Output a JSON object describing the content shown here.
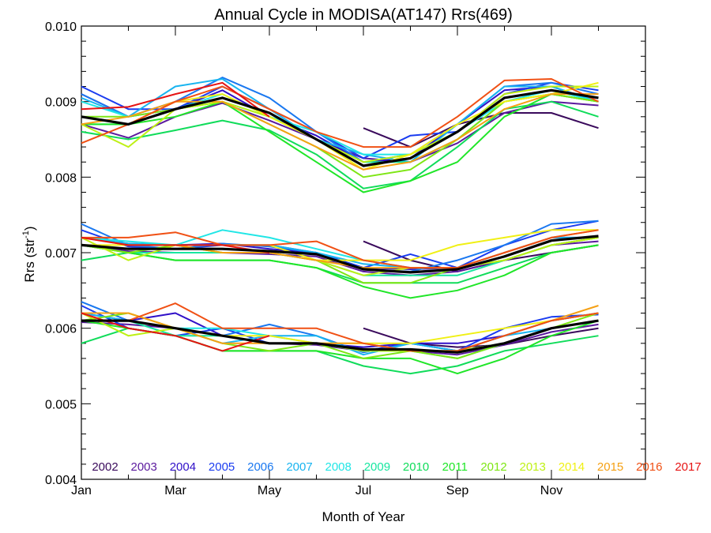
{
  "chart_data": {
    "type": "line",
    "title": "Annual Cycle in MODISA(AT147) Rrs(469)",
    "xlabel": "Month of Year",
    "ylabel_main": "Rrs (str",
    "ylabel_sup": "-1",
    "ylabel_end": ")",
    "xlim": [
      1,
      13
    ],
    "ylim": [
      0.004,
      0.01
    ],
    "x_ticks": [
      {
        "value": 1,
        "label": "Jan"
      },
      {
        "value": 3,
        "label": "Mar"
      },
      {
        "value": 5,
        "label": "May"
      },
      {
        "value": 7,
        "label": "Jul"
      },
      {
        "value": 9,
        "label": "Sep"
      },
      {
        "value": 11,
        "label": "Nov"
      }
    ],
    "y_ticks": [
      {
        "value": 0.004,
        "label": "0.004"
      },
      {
        "value": 0.005,
        "label": "0.005"
      },
      {
        "value": 0.006,
        "label": "0.006"
      },
      {
        "value": 0.007,
        "label": "0.007"
      },
      {
        "value": 0.008,
        "label": "0.008"
      },
      {
        "value": 0.009,
        "label": "0.009"
      },
      {
        "value": 0.01,
        "label": "0.010"
      }
    ],
    "legend_position": "bottom",
    "mean_color": "#000000",
    "months": [
      1,
      2,
      3,
      4,
      5,
      6,
      7,
      8,
      9,
      10,
      11,
      12
    ],
    "mean": {
      "upper": [
        0.0088,
        0.0087,
        0.0089,
        0.00905,
        0.00885,
        0.0085,
        0.00815,
        0.00825,
        0.0086,
        0.00905,
        0.00915,
        0.00905
      ],
      "middle": [
        0.0071,
        0.00705,
        0.00705,
        0.00705,
        0.00702,
        0.00698,
        0.00678,
        0.00674,
        0.00678,
        0.00695,
        0.00716,
        0.00722
      ],
      "lower": [
        0.0061,
        0.0061,
        0.006,
        0.0059,
        0.0058,
        0.0058,
        0.00572,
        0.00572,
        0.00568,
        0.0058,
        0.006,
        0.0061
      ]
    },
    "series": [
      {
        "name": "2002",
        "color": "#3a0a5c",
        "upper": [
          null,
          null,
          null,
          null,
          null,
          null,
          0.00865,
          0.0084,
          0.0087,
          0.00885,
          0.00885,
          0.00865
        ],
        "middle": [
          null,
          null,
          null,
          null,
          null,
          null,
          0.00715,
          0.0069,
          0.00675,
          0.0069,
          0.007,
          0.0071
        ],
        "lower": [
          null,
          null,
          null,
          null,
          null,
          null,
          0.006,
          0.0058,
          0.00575,
          0.00578,
          0.0059,
          0.006
        ]
      },
      {
        "name": "2003",
        "color": "#5b1a9e",
        "upper": [
          0.0087,
          0.00852,
          0.0088,
          0.00898,
          0.00875,
          0.0085,
          0.00825,
          0.0082,
          0.00845,
          0.00885,
          0.009,
          0.00895
        ],
        "middle": [
          0.0071,
          0.00702,
          0.007,
          0.007,
          0.00698,
          0.00695,
          0.00675,
          0.0067,
          0.00675,
          0.0069,
          0.0071,
          0.00715
        ],
        "lower": [
          0.00608,
          0.00605,
          0.006,
          0.0059,
          0.0058,
          0.00578,
          0.0057,
          0.0057,
          0.00565,
          0.00578,
          0.00595,
          0.00605
        ]
      },
      {
        "name": "2004",
        "color": "#3010c8",
        "upper": [
          0.0091,
          0.0088,
          0.0089,
          0.00915,
          0.0088,
          0.00855,
          0.0082,
          0.00825,
          0.0087,
          0.00915,
          0.0092,
          0.009
        ],
        "middle": [
          0.0072,
          0.00712,
          0.0071,
          0.00712,
          0.00705,
          0.007,
          0.0068,
          0.00678,
          0.0068,
          0.007,
          0.0072,
          0.0072
        ],
        "lower": [
          0.0062,
          0.0061,
          0.0062,
          0.0059,
          0.0058,
          0.0058,
          0.00575,
          0.0058,
          0.0058,
          0.0059,
          0.0061,
          0.0062
        ]
      },
      {
        "name": "2005",
        "color": "#1a3cf0",
        "upper": [
          0.0092,
          0.0089,
          0.0089,
          0.0092,
          0.0089,
          0.0086,
          0.00825,
          0.00855,
          0.0086,
          0.0091,
          0.00925,
          0.00915
        ],
        "middle": [
          0.0073,
          0.00708,
          0.00705,
          0.0071,
          0.0071,
          0.007,
          0.0068,
          0.00698,
          0.0068,
          0.0071,
          0.0073,
          0.00742
        ],
        "lower": [
          0.0063,
          0.006,
          0.0059,
          0.006,
          0.0058,
          0.0058,
          0.0057,
          0.0058,
          0.0057,
          0.006,
          0.00615,
          0.00618
        ]
      },
      {
        "name": "2006",
        "color": "#1a78f0",
        "upper": [
          0.0091,
          0.0088,
          0.009,
          0.00932,
          0.00905,
          0.0086,
          0.0082,
          0.0083,
          0.0087,
          0.0092,
          0.00925,
          0.0091
        ],
        "middle": [
          0.00738,
          0.0071,
          0.00705,
          0.00712,
          0.00708,
          0.007,
          0.00678,
          0.00675,
          0.0069,
          0.0071,
          0.00738,
          0.00742
        ],
        "lower": [
          0.00635,
          0.0061,
          0.006,
          0.0059,
          0.00605,
          0.0059,
          0.00568,
          0.0058,
          0.0057,
          0.0059,
          0.0061,
          0.0062
        ]
      },
      {
        "name": "2007",
        "color": "#18b4f0",
        "upper": [
          0.00905,
          0.0088,
          0.0092,
          0.0093,
          0.0089,
          0.0085,
          0.0083,
          0.0082,
          0.0087,
          0.0092,
          0.0092,
          0.009
        ],
        "middle": [
          0.0072,
          0.00712,
          0.0071,
          0.0071,
          0.0071,
          0.007,
          0.00685,
          0.0068,
          0.0068,
          0.007,
          0.0072,
          0.0072
        ],
        "lower": [
          0.0062,
          0.0061,
          0.006,
          0.0058,
          0.0059,
          0.0059,
          0.00565,
          0.0058,
          0.0057,
          0.0059,
          0.006,
          0.0061
        ]
      },
      {
        "name": "2008",
        "color": "#20e6e6",
        "upper": [
          0.009,
          0.0088,
          0.0089,
          0.0091,
          0.0088,
          0.0086,
          0.0083,
          0.0083,
          0.0086,
          0.009,
          0.00915,
          0.009
        ],
        "middle": [
          0.0072,
          0.00715,
          0.0071,
          0.0073,
          0.0072,
          0.00705,
          0.0069,
          0.0068,
          0.0068,
          0.0069,
          0.0071,
          0.0072
        ],
        "lower": [
          0.0061,
          0.0061,
          0.006,
          0.006,
          0.0059,
          0.0058,
          0.0057,
          0.0057,
          0.0057,
          0.0058,
          0.006,
          0.0061
        ]
      },
      {
        "name": "2009",
        "color": "#18e6a0",
        "upper": [
          0.0087,
          0.0087,
          0.0089,
          0.009,
          0.0088,
          0.0085,
          0.0082,
          0.0082,
          0.0085,
          0.009,
          0.0091,
          0.009
        ],
        "middle": [
          0.0071,
          0.007,
          0.007,
          0.007,
          0.007,
          0.0069,
          0.0067,
          0.0067,
          0.0067,
          0.0069,
          0.0071,
          0.0072
        ],
        "lower": [
          0.0061,
          0.0061,
          0.0059,
          0.0059,
          0.0058,
          0.0058,
          0.0057,
          0.0057,
          0.0056,
          0.0058,
          0.006,
          0.0061
        ]
      },
      {
        "name": "2010",
        "color": "#10dc5a",
        "upper": [
          0.0086,
          0.0085,
          0.00862,
          0.00875,
          0.00862,
          0.0083,
          0.00785,
          0.00795,
          0.0084,
          0.0089,
          0.009,
          0.0088
        ],
        "middle": [
          0.0069,
          0.007,
          0.0069,
          0.0069,
          0.0069,
          0.0068,
          0.0066,
          0.0066,
          0.0066,
          0.0068,
          0.007,
          0.0071
        ],
        "lower": [
          0.0058,
          0.006,
          0.0059,
          0.0057,
          0.0057,
          0.0057,
          0.0055,
          0.0054,
          0.0055,
          0.0057,
          0.0058,
          0.0059
        ]
      },
      {
        "name": "2011",
        "color": "#20e628",
        "upper": [
          0.0087,
          0.0087,
          0.0088,
          0.009,
          0.0086,
          0.0082,
          0.0078,
          0.00795,
          0.0082,
          0.0088,
          0.0091,
          0.009
        ],
        "middle": [
          0.0071,
          0.007,
          0.0069,
          0.0069,
          0.0069,
          0.0068,
          0.00655,
          0.0064,
          0.0065,
          0.0067,
          0.007,
          0.0071
        ],
        "lower": [
          0.0061,
          0.006,
          0.0059,
          0.0057,
          0.0057,
          0.0057,
          0.0056,
          0.0056,
          0.0054,
          0.0056,
          0.0059,
          0.0061
        ]
      },
      {
        "name": "2012",
        "color": "#7ee614",
        "upper": [
          0.0088,
          0.0088,
          0.0089,
          0.009,
          0.0087,
          0.0084,
          0.008,
          0.0081,
          0.0085,
          0.009,
          0.0091,
          0.009
        ],
        "middle": [
          0.0071,
          0.007,
          0.0071,
          0.007,
          0.007,
          0.0069,
          0.0066,
          0.0066,
          0.0068,
          0.0069,
          0.0071,
          0.0072
        ],
        "lower": [
          0.0061,
          0.0062,
          0.006,
          0.0058,
          0.0057,
          0.0058,
          0.0056,
          0.0057,
          0.0056,
          0.0058,
          0.006,
          0.0062
        ]
      },
      {
        "name": "2013",
        "color": "#bef014",
        "upper": [
          0.0087,
          0.0084,
          0.0089,
          0.009,
          0.0088,
          0.0085,
          0.0082,
          0.0083,
          0.0086,
          0.0091,
          0.0092,
          0.0092
        ],
        "middle": [
          0.0072,
          0.0069,
          0.0071,
          0.007,
          0.007,
          0.0069,
          0.0067,
          0.0068,
          0.0068,
          0.0069,
          0.0071,
          0.0072
        ],
        "lower": [
          0.0062,
          0.0059,
          0.006,
          0.0059,
          0.0058,
          0.0058,
          0.0057,
          0.0057,
          0.0057,
          0.0058,
          0.006,
          0.0061
        ]
      },
      {
        "name": "2014",
        "color": "#f0f014",
        "upper": [
          0.0088,
          0.0087,
          0.009,
          0.0091,
          0.0088,
          0.0085,
          0.0081,
          0.0083,
          0.0087,
          0.009,
          0.0091,
          0.00925
        ],
        "middle": [
          0.0071,
          0.0071,
          0.0071,
          0.0071,
          0.0071,
          0.0069,
          0.0069,
          0.0069,
          0.0071,
          0.0072,
          0.0073,
          0.0073
        ],
        "lower": [
          0.0061,
          0.0061,
          0.006,
          0.0059,
          0.0059,
          0.0058,
          0.0058,
          0.0058,
          0.0059,
          0.006,
          0.0061,
          0.0062
        ]
      },
      {
        "name": "2015",
        "color": "#f5a014",
        "upper": [
          0.0087,
          0.0088,
          0.009,
          0.009,
          0.0087,
          0.0084,
          0.0081,
          0.0082,
          0.0085,
          0.0089,
          0.0091,
          0.0091
        ],
        "middle": [
          0.0072,
          0.0071,
          0.0071,
          0.007,
          0.007,
          0.0069,
          0.0068,
          0.0068,
          0.0068,
          0.007,
          0.0072,
          0.0073
        ],
        "lower": [
          0.0062,
          0.0062,
          0.006,
          0.0058,
          0.0058,
          0.0058,
          0.0058,
          0.0057,
          0.0057,
          0.0059,
          0.0061,
          0.0063
        ]
      },
      {
        "name": "2016",
        "color": "#f05014",
        "upper": [
          0.00845,
          0.0087,
          0.009,
          0.0092,
          0.0089,
          0.0086,
          0.0084,
          0.0084,
          0.0088,
          0.00928,
          0.0093,
          0.009
        ],
        "middle": [
          0.0072,
          0.0072,
          0.00727,
          0.0071,
          0.0071,
          0.00715,
          0.0069,
          0.0068,
          0.0068,
          0.007,
          0.0072,
          0.0073
        ],
        "lower": [
          0.0061,
          0.0061,
          0.00633,
          0.006,
          0.006,
          0.006,
          0.0058,
          0.0057,
          0.0057,
          0.0059,
          0.0061,
          0.0062
        ]
      },
      {
        "name": "2017",
        "color": "#e61414",
        "upper": [
          0.0089,
          0.00893,
          0.0091,
          0.00925,
          0.0088,
          null,
          null,
          null,
          null,
          null,
          null,
          null
        ],
        "middle": [
          0.0072,
          0.0071,
          0.0071,
          0.0071,
          0.007,
          null,
          null,
          null,
          null,
          null,
          null,
          null
        ],
        "lower": [
          0.0062,
          0.006,
          0.0059,
          0.0057,
          0.0059,
          null,
          null,
          null,
          null,
          null,
          null,
          null
        ]
      }
    ]
  }
}
